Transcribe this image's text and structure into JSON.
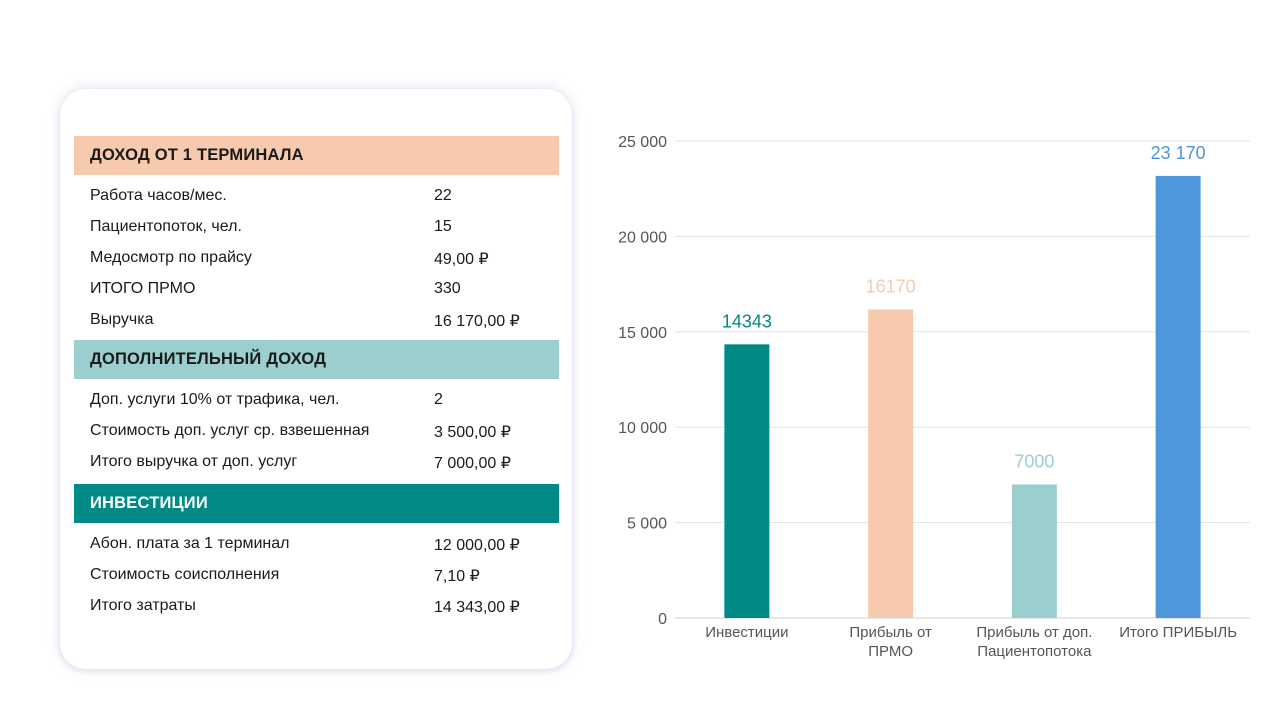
{
  "table": {
    "sections": [
      {
        "title": "ДОХОД ОТ 1 ТЕРМИНАЛА",
        "color": "#f7c9ae",
        "text_color": "#1a1a1a",
        "rows": [
          {
            "label": "Работа часов/мес.",
            "value": "22"
          },
          {
            "label": "Пациентопоток, чел.",
            "value": "15"
          },
          {
            "label": "Медосмотр по прайсу",
            "value": "49,00 ₽"
          },
          {
            "label": "ИТОГО ПРМО",
            "value": "330"
          },
          {
            "label": "Выручка",
            "value": "16 170,00 ₽"
          }
        ]
      },
      {
        "title": "ДОПОЛНИТЕЛЬНЫЙ ДОХОД",
        "color": "#9bcfcf",
        "text_color": "#1a1a1a",
        "rows": [
          {
            "label": "Доп. услуги 10% от трафика, чел.",
            "value": "2"
          },
          {
            "label": "Стоимость доп. услуг ср. взвешенная",
            "value": "3 500,00 ₽"
          },
          {
            "label": "Итого выручка от доп. услуг",
            "value": "7 000,00 ₽"
          }
        ]
      },
      {
        "title": "ИНВЕСТИЦИИ",
        "color": "#008a87",
        "text_color": "#ffffff",
        "rows": [
          {
            "label": "Абон. плата за 1 терминал",
            "value": "12 000,00 ₽"
          },
          {
            "label": "Стоимость соисполнения",
            "value": "7,10 ₽"
          },
          {
            "label": "Итого затраты",
            "value": "14 343,00 ₽"
          }
        ]
      }
    ]
  },
  "chart_data": {
    "type": "bar",
    "categories": [
      [
        "Инвестиции"
      ],
      [
        "Прибыль от",
        "ПРМО"
      ],
      [
        "Прибыль от доп.",
        "Пациентопотока"
      ],
      [
        "Итого ПРИБЫЛЬ"
      ]
    ],
    "values": [
      14343,
      16170,
      7000,
      23170
    ],
    "data_labels": [
      "14343",
      "16170",
      "7000",
      "23 170"
    ],
    "colors": [
      "#008a87",
      "#f7c9ae",
      "#9bcfcf",
      "#4f97db"
    ],
    "ylim": [
      0,
      25000
    ],
    "yticks": [
      0,
      5000,
      10000,
      15000,
      20000,
      25000
    ],
    "ytick_labels": [
      "0",
      "5 000",
      "10 000",
      "15 000",
      "20 000",
      "25 000"
    ],
    "grid": true
  }
}
